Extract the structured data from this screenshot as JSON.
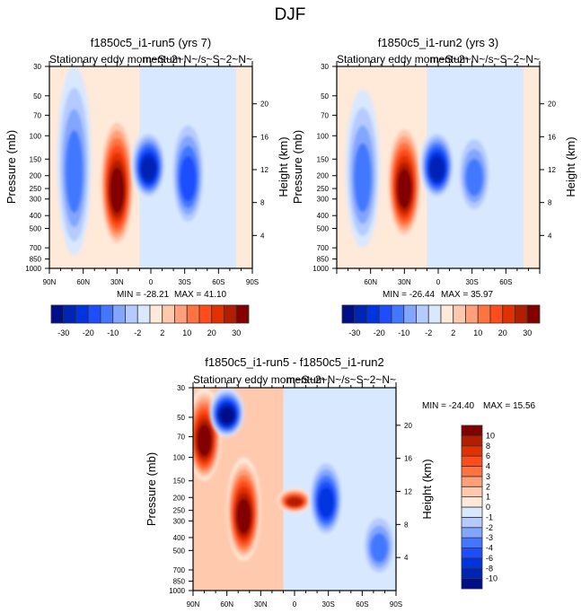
{
  "figure": {
    "main_title": "DJF"
  },
  "colormap": {
    "colors": [
      "#000f88",
      "#0024b4",
      "#0034e0",
      "#1e4dff",
      "#4278ff",
      "#82a6ff",
      "#b5cbff",
      "#d8e8ff",
      "#ffe9d9",
      "#ffc9ae",
      "#ffa07a",
      "#ff7340",
      "#ff4c1c",
      "#e23100",
      "#b21f00",
      "#820000"
    ]
  },
  "chart_data": [
    {
      "type": "heatmap",
      "id": "panel-run5",
      "title": "f1850c5_i1-run5 (yrs 7)",
      "left_string": "Stationary eddy momentum",
      "right_string": "m~S~2~N~/s~S~2~N~",
      "xlabel": "",
      "ylabel": "Pressure (mb)",
      "ylabel_right": "Height (km)",
      "x_ticks": [
        "90N",
        "60N",
        "30N",
        "0",
        "30S",
        "60S",
        "90S"
      ],
      "x_range": [
        90,
        -90
      ],
      "y_ticks": [
        30,
        50,
        70,
        100,
        150,
        200,
        250,
        300,
        400,
        500,
        700,
        850,
        1000
      ],
      "y_range": [
        30,
        1000
      ],
      "y_scale": "log",
      "height_ticks": [
        4,
        8,
        12,
        16,
        20
      ],
      "min_label": "MIN = -28.21",
      "max_label": "MAX =  41.10",
      "min": -28.21,
      "max": 41.1,
      "colorbar": {
        "orientation": "horizontal",
        "levels": [
          -30,
          -25,
          -20,
          -15,
          -10,
          -5,
          -2,
          0,
          2,
          5,
          10,
          15,
          20,
          25,
          30
        ],
        "labels": [
          "-30",
          "-20",
          "-10",
          "-2",
          "2",
          "10",
          "20",
          "30"
        ]
      },
      "features": [
        {
          "lat": 68,
          "p_top": 30,
          "p_bot": 800,
          "value": -12,
          "note": "negative column"
        },
        {
          "lat": 30,
          "p_top": 70,
          "p_bot": 700,
          "value": 41,
          "note": "positive max near 250mb"
        },
        {
          "lat": 2,
          "p_top": 90,
          "p_bot": 300,
          "value": -28,
          "note": "negative core near 150mb"
        },
        {
          "lat": -33,
          "p_top": 70,
          "p_bot": 500,
          "value": -15,
          "note": "negative core near 170mb"
        }
      ]
    },
    {
      "type": "heatmap",
      "id": "panel-run2",
      "title": "f1850c5_i1-run2 (yrs 3)",
      "left_string": "Stationary eddy momentum",
      "right_string": "m~S~2~N~/s~S~2~N~",
      "xlabel": "",
      "ylabel": "Pressure (mb)",
      "ylabel_right": "Height (km)",
      "x_ticks": [
        "60N",
        "30N",
        "0",
        "30S",
        "60S"
      ],
      "x_range": [
        90,
        -90
      ],
      "y_ticks": [
        30,
        50,
        70,
        100,
        150,
        200,
        250,
        300,
        400,
        500,
        700,
        850,
        1000
      ],
      "y_range": [
        30,
        1000
      ],
      "y_scale": "log",
      "height_ticks": [
        4,
        8,
        12,
        16,
        20
      ],
      "min_label": "MIN = -26.44",
      "max_label": "MAX =  35.97",
      "min": -26.44,
      "max": 35.97,
      "colorbar": {
        "orientation": "horizontal",
        "levels": [
          -30,
          -25,
          -20,
          -15,
          -10,
          -5,
          -2,
          0,
          2,
          5,
          10,
          15,
          20,
          25,
          30
        ],
        "labels": [
          "-30",
          "-20",
          "-10",
          "-2",
          "2",
          "10",
          "20",
          "30"
        ]
      },
      "features": [
        {
          "lat": 67,
          "p_top": 45,
          "p_bot": 700,
          "value": -12,
          "note": "negative column"
        },
        {
          "lat": 30,
          "p_top": 80,
          "p_bot": 600,
          "value": 36,
          "note": "positive max near 200mb"
        },
        {
          "lat": 1,
          "p_top": 90,
          "p_bot": 300,
          "value": -26,
          "note": "negative core near 180mb"
        },
        {
          "lat": -32,
          "p_top": 90,
          "p_bot": 400,
          "value": -10,
          "note": "negative core near 200mb"
        }
      ]
    },
    {
      "type": "heatmap",
      "id": "panel-diff",
      "title": "f1850c5_i1-run5 - f1850c5_i1-run2",
      "left_string": "Stationary eddy momentum",
      "right_string": "m~S~2~N~/s~S~2~N~",
      "xlabel": "",
      "ylabel": "Pressure (mb)",
      "ylabel_right": "Height (km)",
      "x_ticks": [
        "90N",
        "60N",
        "30N",
        "0",
        "30S",
        "60S",
        "90S"
      ],
      "x_range": [
        90,
        -90
      ],
      "y_ticks": [
        30,
        50,
        70,
        100,
        150,
        200,
        250,
        300,
        400,
        500,
        700,
        850,
        1000
      ],
      "y_range": [
        30,
        1000
      ],
      "y_scale": "log",
      "height_ticks": [
        4,
        8,
        12,
        16,
        20
      ],
      "min_label": "MIN = -24.40",
      "max_label": "MAX =  15.56",
      "min": -24.4,
      "max": 15.56,
      "colorbar": {
        "orientation": "vertical",
        "levels": [
          -10,
          -8,
          -6,
          -4,
          -3,
          -2,
          -1,
          0,
          1,
          2,
          3,
          4,
          6,
          8,
          10
        ],
        "labels": [
          "10",
          "8",
          "6",
          "4",
          "3",
          "2",
          "1",
          "0",
          "-1",
          "-2",
          "-3",
          "-4",
          "-6",
          "-8",
          "-10"
        ]
      },
      "features": [
        {
          "lat": 80,
          "p_top": 30,
          "p_bot": 150,
          "value": 12,
          "note": "positive near pole upper levels"
        },
        {
          "lat": 60,
          "p_top": 30,
          "p_bot": 70,
          "value": -24,
          "note": "strong negative near 30-60mb"
        },
        {
          "lat": 45,
          "p_top": 100,
          "p_bot": 600,
          "value": 15,
          "note": "positive max near 300mb"
        },
        {
          "lat": 0,
          "p_top": 170,
          "p_bot": 260,
          "value": 8,
          "note": "positive equatorial"
        },
        {
          "lat": -28,
          "p_top": 100,
          "p_bot": 400,
          "value": -7,
          "note": "negative core near 150mb"
        },
        {
          "lat": -75,
          "p_top": 250,
          "p_bot": 800,
          "value": -3,
          "note": "weak negative"
        }
      ]
    }
  ]
}
